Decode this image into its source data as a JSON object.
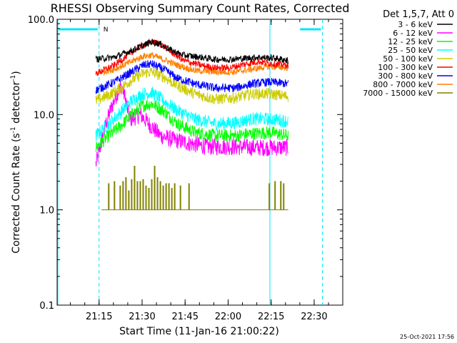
{
  "chart_data": {
    "type": "line",
    "title": "RHESSI Observing Summary Count Rates, Corrected",
    "xlabel": "Start Time (11-Jan-16 21:00:22)",
    "ylabel": "Corrected Count Rate (s⁻¹ detector⁻¹)",
    "ylabel_parts": [
      "Corrected Count Rate (s",
      "-1",
      " detector",
      "-1",
      ")"
    ],
    "yscale": "log",
    "ylim": [
      0.1,
      100
    ],
    "xlim_minutes": [
      0,
      99.6
    ],
    "x_units": "minutes after 21:00:22",
    "y_ticks": [
      "0.1",
      "1.0",
      "10.0",
      "100.0"
    ],
    "x_ticks": [
      {
        "label": "21:15",
        "minute": 14.63
      },
      {
        "label": "21:30",
        "minute": 29.63
      },
      {
        "label": "21:45",
        "minute": 44.63
      },
      {
        "label": "22:00",
        "minute": 59.63
      },
      {
        "label": "22:15",
        "minute": 74.63
      },
      {
        "label": "22:30",
        "minute": 89.63
      }
    ],
    "legend_title": "Det 1,5,7, Att 0",
    "legend_placement": "right",
    "data_window_minutes": [
      13.5,
      80.6
    ],
    "series": [
      {
        "name": "3 - 6 keV",
        "color": "#000000",
        "noise": 0.035,
        "points": [
          [
            13.5,
            38
          ],
          [
            20,
            40
          ],
          [
            26,
            47
          ],
          [
            30,
            53
          ],
          [
            33,
            58
          ],
          [
            36,
            55
          ],
          [
            40,
            47
          ],
          [
            44,
            42
          ],
          [
            50,
            40
          ],
          [
            55,
            38
          ],
          [
            60,
            38
          ],
          [
            66,
            39
          ],
          [
            70,
            40
          ],
          [
            76,
            39
          ],
          [
            80.6,
            37
          ]
        ]
      },
      {
        "name": "6 - 12 keV",
        "color": "#ff00ff",
        "noise": 0.09,
        "points": [
          [
            13.5,
            3.0
          ],
          [
            15,
            4.5
          ],
          [
            17,
            8
          ],
          [
            19,
            12
          ],
          [
            21,
            17
          ],
          [
            22.5,
            20
          ],
          [
            24,
            14
          ],
          [
            25,
            9.5
          ],
          [
            26,
            9
          ],
          [
            29,
            10
          ],
          [
            32,
            8
          ],
          [
            36,
            6
          ],
          [
            40,
            5.5
          ],
          [
            46,
            5
          ],
          [
            52,
            4.6
          ],
          [
            60,
            4.6
          ],
          [
            70,
            4.5
          ],
          [
            80.6,
            4.5
          ]
        ]
      },
      {
        "name": "12 - 25 keV",
        "color": "#00ff00",
        "noise": 0.07,
        "points": [
          [
            13.5,
            4.5
          ],
          [
            18,
            6
          ],
          [
            22,
            7.5
          ],
          [
            26,
            10
          ],
          [
            30,
            12.5
          ],
          [
            33,
            13
          ],
          [
            37,
            11
          ],
          [
            42,
            8
          ],
          [
            48,
            6.5
          ],
          [
            55,
            6
          ],
          [
            62,
            6
          ],
          [
            68,
            6.3
          ],
          [
            74,
            6.5
          ],
          [
            80.6,
            6
          ]
        ]
      },
      {
        "name": "25 - 50 keV",
        "color": "#00ffff",
        "noise": 0.07,
        "points": [
          [
            13.5,
            6
          ],
          [
            18,
            8
          ],
          [
            22,
            10.5
          ],
          [
            26,
            14
          ],
          [
            30,
            16.5
          ],
          [
            33,
            17
          ],
          [
            37,
            14
          ],
          [
            42,
            11
          ],
          [
            48,
            9
          ],
          [
            55,
            8
          ],
          [
            62,
            8.2
          ],
          [
            68,
            9
          ],
          [
            74,
            9
          ],
          [
            80.6,
            8.5
          ]
        ]
      },
      {
        "name": "50 - 100 keV",
        "color": "#cccc00",
        "noise": 0.06,
        "points": [
          [
            13.5,
            14
          ],
          [
            18,
            16
          ],
          [
            22,
            19
          ],
          [
            26,
            23
          ],
          [
            30,
            27
          ],
          [
            33,
            28
          ],
          [
            37,
            25
          ],
          [
            42,
            20
          ],
          [
            48,
            16.5
          ],
          [
            55,
            14.5
          ],
          [
            62,
            15
          ],
          [
            68,
            16.5
          ],
          [
            74,
            16.5
          ],
          [
            80.6,
            15.5
          ]
        ]
      },
      {
        "name": "100 - 300 keV",
        "color": "#ff0000",
        "noise": 0.035,
        "points": [
          [
            13.5,
            27
          ],
          [
            20,
            33
          ],
          [
            26,
            45
          ],
          [
            30,
            54
          ],
          [
            33,
            58
          ],
          [
            36,
            55
          ],
          [
            40,
            45
          ],
          [
            44,
            37
          ],
          [
            50,
            33
          ],
          [
            55,
            31
          ],
          [
            60,
            31
          ],
          [
            66,
            34
          ],
          [
            70,
            36
          ],
          [
            76,
            34
          ],
          [
            80.6,
            33
          ]
        ]
      },
      {
        "name": "300 - 800 keV",
        "color": "#0000ff",
        "noise": 0.045,
        "points": [
          [
            13.5,
            18
          ],
          [
            20,
            22
          ],
          [
            26,
            28
          ],
          [
            30,
            33
          ],
          [
            33,
            34
          ],
          [
            37,
            30
          ],
          [
            42,
            24
          ],
          [
            48,
            21
          ],
          [
            55,
            19
          ],
          [
            62,
            19
          ],
          [
            68,
            21
          ],
          [
            74,
            22
          ],
          [
            80.6,
            21
          ]
        ]
      },
      {
        "name": "800 - 7000 keV",
        "color": "#ff8000",
        "noise": 0.035,
        "points": [
          [
            13.5,
            27
          ],
          [
            20,
            30
          ],
          [
            26,
            36
          ],
          [
            30,
            41
          ],
          [
            33,
            42
          ],
          [
            37,
            38
          ],
          [
            42,
            33
          ],
          [
            48,
            29
          ],
          [
            55,
            28
          ],
          [
            62,
            28
          ],
          [
            68,
            30
          ],
          [
            74,
            32
          ],
          [
            80.6,
            31
          ]
        ]
      },
      {
        "name": "7000 - 15000 keV",
        "color": "#808000",
        "noise": 0,
        "points": [
          [
            15.5,
            1.0
          ],
          [
            80.6,
            1.0
          ]
        ],
        "spikes": [
          [
            18,
            1.9
          ],
          [
            20,
            2.0
          ],
          [
            22,
            1.8
          ],
          [
            23,
            2.0
          ],
          [
            24,
            2.2
          ],
          [
            25,
            1.6
          ],
          [
            26,
            2.1
          ],
          [
            27,
            2.9
          ],
          [
            28,
            2.0
          ],
          [
            29,
            2.0
          ],
          [
            30,
            2.1
          ],
          [
            31,
            1.8
          ],
          [
            32,
            1.7
          ],
          [
            33,
            2.1
          ],
          [
            34,
            2.9
          ],
          [
            35,
            2.2
          ],
          [
            36,
            2.0
          ],
          [
            37,
            1.8
          ],
          [
            38,
            1.9
          ],
          [
            39,
            1.9
          ],
          [
            40,
            1.7
          ],
          [
            41,
            1.9
          ],
          [
            43,
            1.8
          ],
          [
            46,
            1.9
          ],
          [
            74,
            1.9
          ],
          [
            76,
            2.0
          ],
          [
            78,
            2.0
          ],
          [
            79,
            1.9
          ]
        ]
      }
    ],
    "attenuator_bars": [
      {
        "label": "N",
        "from_minute": 0,
        "to_minute": 14.63
      },
      {
        "label": "",
        "from_minute": 84.2,
        "to_minute": 92.5
      }
    ],
    "vertical_markers": [
      {
        "minute": 0,
        "style": "solid"
      },
      {
        "minute": 14.63,
        "style": "dashed"
      },
      {
        "minute": 74.2,
        "style": "solid"
      },
      {
        "minute": 92.5,
        "style": "dashed"
      }
    ],
    "grid": false
  },
  "footer": {
    "timestamp": "25-Oct-2021 17:56"
  }
}
